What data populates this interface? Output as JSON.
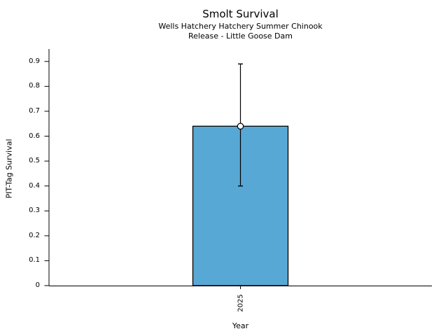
{
  "figure": {
    "background": "#ffffff",
    "text_color": "#000000"
  },
  "chart_data": {
    "type": "bar",
    "title": "Smolt Survival",
    "subtitle_line1": "Wells Hatchery Hatchery Summer Chinook",
    "subtitle_line2": "Release - Little Goose Dam",
    "xlabel": "Year",
    "ylabel": "PIT-Tag Survival",
    "categories": [
      "2025"
    ],
    "values": [
      0.64
    ],
    "error_low": [
      0.4
    ],
    "error_high": [
      0.89
    ],
    "yticks": [
      0,
      0.1,
      0.2,
      0.3,
      0.4,
      0.5,
      0.6,
      0.7,
      0.8,
      0.9
    ],
    "ytick_labels": [
      "0",
      "0.1",
      "0.2",
      "0.3",
      "0.4",
      "0.5",
      "0.6",
      "0.7",
      "0.8",
      "0.9"
    ],
    "ylim": [
      0,
      0.95
    ],
    "xtick_rotation": 90,
    "marker": "open-circle",
    "grid": false,
    "legend": "none",
    "bar_color": "#58a8d6",
    "bar_edge_color": "#000000",
    "error_color": "#000000",
    "marker_fill": "#ffffff",
    "axis_color": "#000000"
  }
}
